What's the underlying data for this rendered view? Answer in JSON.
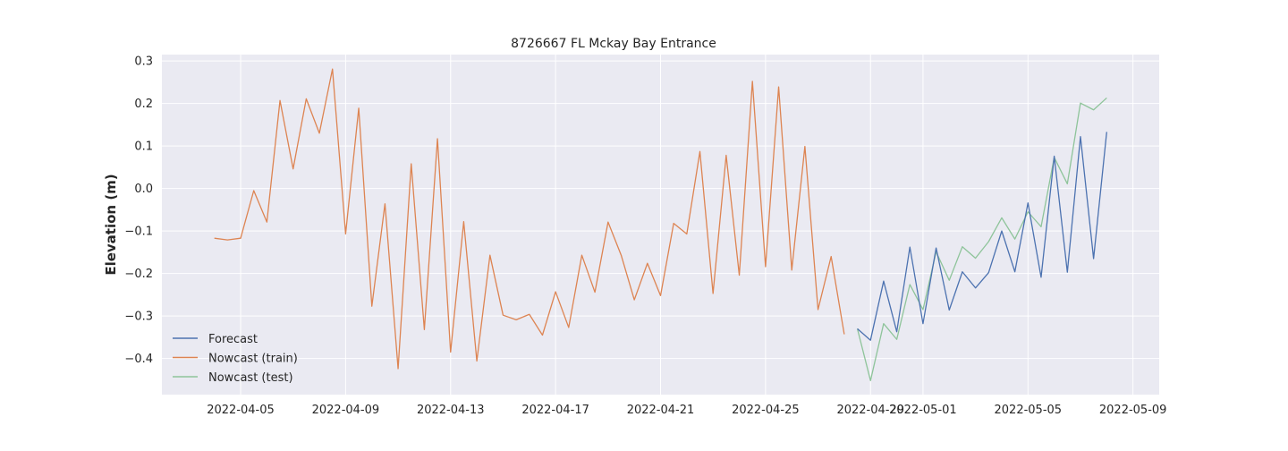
{
  "chart_data": {
    "type": "line",
    "title": "8726667 FL Mckay Bay Entrance",
    "xlabel": "",
    "ylabel": "Elevation (m)",
    "xlim": [
      "2022-04-02",
      "2022-05-10"
    ],
    "ylim": [
      -0.485,
      0.315
    ],
    "x_ticks": [
      "2022-04-05",
      "2022-04-09",
      "2022-04-13",
      "2022-04-17",
      "2022-04-21",
      "2022-04-25",
      "2022-04-29",
      "2022-05-01",
      "2022-05-05",
      "2022-05-09"
    ],
    "y_ticks": [
      -0.4,
      -0.3,
      -0.2,
      -0.1,
      0.0,
      0.1,
      0.2,
      0.3
    ],
    "y_tick_labels": [
      "−0.4",
      "−0.3",
      "−0.2",
      "−0.1",
      "0.0",
      "0.1",
      "0.2",
      "0.3"
    ],
    "grid": true,
    "legend_position": "lower-left",
    "background": "#eaeaf2",
    "series": [
      {
        "name": "Forecast",
        "color": "#4c72b0",
        "x": [
          "2022-04-28T12:00",
          "2022-04-29T00:00",
          "2022-04-29T12:00",
          "2022-04-30T00:00",
          "2022-04-30T12:00",
          "2022-05-01T00:00",
          "2022-05-01T12:00",
          "2022-05-02T00:00",
          "2022-05-02T12:00",
          "2022-05-03T00:00",
          "2022-05-03T12:00",
          "2022-05-04T00:00",
          "2022-05-04T12:00",
          "2022-05-05T00:00",
          "2022-05-05T12:00",
          "2022-05-06T00:00",
          "2022-05-06T12:00",
          "2022-05-07T00:00",
          "2022-05-07T12:00",
          "2022-05-08T00:00"
        ],
        "y": [
          -0.33,
          -0.357,
          -0.218,
          -0.337,
          -0.138,
          -0.318,
          -0.14,
          -0.286,
          -0.196,
          -0.234,
          -0.198,
          -0.1,
          -0.196,
          -0.034,
          -0.209,
          0.076,
          -0.197,
          0.122,
          -0.165,
          0.133
        ]
      },
      {
        "name": "Nowcast (train)",
        "color": "#dd8452",
        "x": [
          "2022-04-04T00:00",
          "2022-04-04T12:00",
          "2022-04-05T00:00",
          "2022-04-05T12:00",
          "2022-04-06T00:00",
          "2022-04-06T12:00",
          "2022-04-07T00:00",
          "2022-04-07T12:00",
          "2022-04-08T00:00",
          "2022-04-08T12:00",
          "2022-04-09T00:00",
          "2022-04-09T12:00",
          "2022-04-10T00:00",
          "2022-04-10T12:00",
          "2022-04-11T00:00",
          "2022-04-11T12:00",
          "2022-04-12T00:00",
          "2022-04-12T12:00",
          "2022-04-13T00:00",
          "2022-04-13T12:00",
          "2022-04-14T00:00",
          "2022-04-14T12:00",
          "2022-04-15T00:00",
          "2022-04-15T12:00",
          "2022-04-16T00:00",
          "2022-04-16T12:00",
          "2022-04-17T00:00",
          "2022-04-17T12:00",
          "2022-04-18T00:00",
          "2022-04-18T12:00",
          "2022-04-19T00:00",
          "2022-04-19T12:00",
          "2022-04-20T00:00",
          "2022-04-20T12:00",
          "2022-04-21T00:00",
          "2022-04-21T12:00",
          "2022-04-22T00:00",
          "2022-04-22T12:00",
          "2022-04-23T00:00",
          "2022-04-23T12:00",
          "2022-04-24T00:00",
          "2022-04-24T12:00",
          "2022-04-25T00:00",
          "2022-04-25T12:00",
          "2022-04-26T00:00",
          "2022-04-26T12:00",
          "2022-04-27T00:00",
          "2022-04-27T12:00",
          "2022-04-28T00:00"
        ],
        "y": [
          -0.117,
          -0.121,
          -0.117,
          -0.005,
          -0.079,
          0.207,
          0.046,
          0.211,
          0.13,
          0.281,
          -0.107,
          0.189,
          -0.277,
          -0.036,
          -0.424,
          0.058,
          -0.332,
          0.117,
          -0.385,
          -0.078,
          -0.406,
          -0.157,
          -0.298,
          -0.309,
          -0.296,
          -0.345,
          -0.243,
          -0.327,
          -0.157,
          -0.244,
          -0.079,
          -0.157,
          -0.262,
          -0.176,
          -0.252,
          -0.082,
          -0.107,
          0.087,
          -0.247,
          0.078,
          -0.204,
          0.252,
          -0.184,
          0.239,
          -0.192,
          0.099,
          -0.285,
          -0.16,
          -0.343
        ]
      },
      {
        "name": "Nowcast (test)",
        "color": "#8ec49a",
        "x": [
          "2022-04-28T12:00",
          "2022-04-29T00:00",
          "2022-04-29T12:00",
          "2022-04-30T00:00",
          "2022-04-30T12:00",
          "2022-05-01T00:00",
          "2022-05-01T12:00",
          "2022-05-02T00:00",
          "2022-05-02T12:00",
          "2022-05-03T00:00",
          "2022-05-03T12:00",
          "2022-05-04T00:00",
          "2022-05-04T12:00",
          "2022-05-05T00:00",
          "2022-05-05T12:00",
          "2022-05-06T00:00",
          "2022-05-06T12:00",
          "2022-05-07T00:00",
          "2022-05-07T12:00",
          "2022-05-08T00:00"
        ],
        "y": [
          -0.33,
          -0.452,
          -0.318,
          -0.355,
          -0.226,
          -0.285,
          -0.149,
          -0.216,
          -0.137,
          -0.164,
          -0.125,
          -0.069,
          -0.119,
          -0.055,
          -0.09,
          0.073,
          0.011,
          0.201,
          0.185,
          0.213
        ]
      }
    ]
  }
}
